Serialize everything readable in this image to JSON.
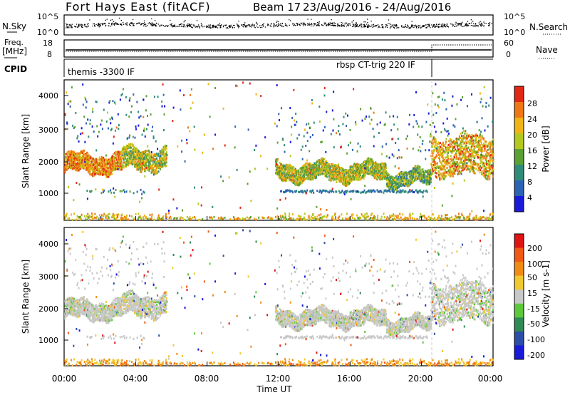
{
  "header": {
    "title": "Fort Hays East (fitACF)",
    "beam_label": "Beam 17",
    "date_range": "23/Aug/2016 - 24/Aug/2016"
  },
  "noise_panel": {
    "left_label": "N.Sky",
    "right_label": "N.Search",
    "left_ticks": [
      "10^5",
      "10^0"
    ],
    "right_ticks": [
      "10^5",
      "10^0"
    ]
  },
  "freq_panel": {
    "left_label_1": "Freq.",
    "left_label_2": "[MHz]",
    "right_label": "Nave",
    "left_ticks": [
      "18",
      "8"
    ],
    "right_ticks": [
      "60",
      "0"
    ],
    "freq_level_mhz": 10.5,
    "nave_before": 33,
    "nave_after": 45
  },
  "cpid": {
    "label": "CPID",
    "segments": [
      {
        "text": "themis -3300 IF",
        "start_hour": 0.0
      },
      {
        "text": "rbsp CT-trig 220 IF",
        "start_hour": 20.5
      }
    ]
  },
  "power_panel": {
    "ylabel": "Slant Range [km]",
    "yticks": [
      "4000",
      "3000",
      "2000",
      "1000"
    ],
    "colorbar_label": "Power [dB]",
    "colorbar_ticks": [
      "28",
      "24",
      "20",
      "16",
      "12",
      "8",
      "4"
    ],
    "colors": [
      "#1a1adb",
      "#2c64b4",
      "#2f8c78",
      "#5aa032",
      "#b4c81e",
      "#f0b414",
      "#f07814",
      "#e12814"
    ]
  },
  "velocity_panel": {
    "ylabel": "Slant Range [km]",
    "yticks": [
      "4000",
      "3000",
      "2000",
      "1000"
    ],
    "colorbar_label": "Velocity [m s-1]",
    "colorbar_ticks": [
      "200",
      "100",
      "50",
      "15",
      "-15",
      "-50",
      "-100",
      "-200"
    ],
    "colors": [
      "#1a1adb",
      "#2b4ea6",
      "#2f8a55",
      "#5cc83c",
      "#c8c8c8",
      "#f0c830",
      "#f08c14",
      "#f05a14",
      "#e11414"
    ]
  },
  "xaxis": {
    "label": "Time UT",
    "ticks": [
      "00:00",
      "04:00",
      "08:00",
      "12:00",
      "16:00",
      "20:00",
      "00:00"
    ]
  },
  "chart_data": {
    "type": "heatmap",
    "title": "Fort Hays East (fitACF)",
    "subtitle": "Beam 17 23/Aug/2016 - 24/Aug/2016",
    "xlabel": "Time UT",
    "ylabel": "Slant Range [km]",
    "xlim": [
      0,
      24
    ],
    "ylim": [
      180,
      4500
    ],
    "grid": false,
    "scatter_bands": [
      {
        "t0": 0.0,
        "t1": 3.2,
        "center_km": 1950,
        "width_km": 280,
        "power_db": 22,
        "velocity": 0
      },
      {
        "t0": 3.2,
        "t1": 5.7,
        "center_km": 2100,
        "width_km": 320,
        "power_db": 16,
        "velocity": 0
      },
      {
        "t0": 11.8,
        "t1": 18.0,
        "center_km": 1700,
        "width_km": 250,
        "power_db": 16,
        "velocity": 0
      },
      {
        "t0": 18.0,
        "t1": 20.5,
        "center_km": 1500,
        "width_km": 220,
        "power_db": 12,
        "velocity": 0
      },
      {
        "t0": 20.5,
        "t1": 24.0,
        "center_km": 2200,
        "width_km": 600,
        "power_db": 20,
        "velocity": 0
      }
    ]
  }
}
